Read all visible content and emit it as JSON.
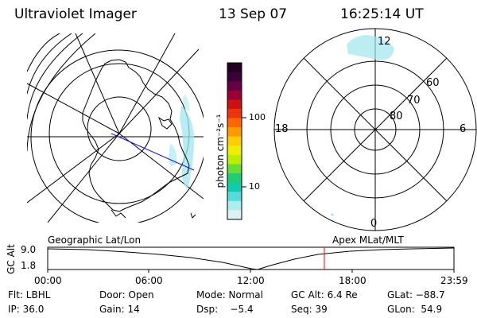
{
  "header": {
    "instrument": "Ultraviolet Imager",
    "date": "13 Sep 07",
    "time": "16:25:14 UT"
  },
  "colors": {
    "grid": "#000000",
    "aurora": "#9ee6ee",
    "track_line": "#1a1acc",
    "current_time_marker": "#ff0000"
  },
  "colorbar": {
    "unit_label": "photon cm⁻²s⁻¹",
    "ticks": [
      "100",
      "10"
    ],
    "colors": [
      "#220022",
      "#3a0038",
      "#660044",
      "#990033",
      "#cc1111",
      "#ee3311",
      "#ff6600",
      "#ff9900",
      "#ffcc00",
      "#eeee00",
      "#bbee00",
      "#66dd33",
      "#22cc77",
      "#11ccaa",
      "#55dddd",
      "#aaeeee",
      "#ddf3f3"
    ]
  },
  "polar_plot": {
    "mlt_labels": {
      "top": "12",
      "left": "18",
      "right": "6",
      "bottom": "0"
    },
    "lat_labels": [
      "60",
      "70",
      "80"
    ]
  },
  "timeline": {
    "y_axis_label": "GC Alt",
    "y_ticks": [
      "9.0",
      "1.8"
    ],
    "left_caption": "Geographic Lat/Lon",
    "right_caption": "Apex MLat/MLT",
    "x_ticks": [
      "00:00",
      "06:00",
      "12:00",
      "18:00",
      "23:59"
    ],
    "current_time": "16:25"
  },
  "params": {
    "filter": "Flt: LBHL",
    "door": "Door: Open",
    "mode": "Mode: Normal",
    "gc_alt": "GC Alt: 6.4 Re",
    "glat": "GLat: −88.7",
    "ip": "IP: 36.0",
    "gain": "Gain: 14",
    "dsp": "Dsp:    −5.4",
    "seq": "Seq: 39",
    "glon": "GLon:  54.9"
  }
}
